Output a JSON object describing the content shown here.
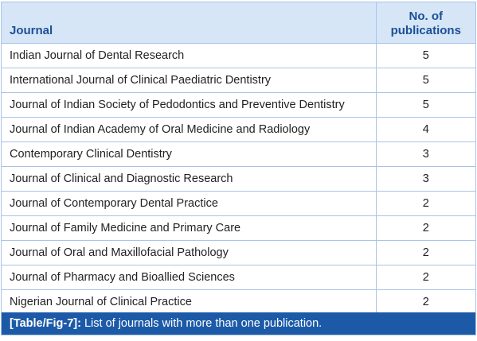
{
  "table": {
    "headers": {
      "journal": "Journal",
      "count_line1": "No. of",
      "count_line2": "publications"
    },
    "rows": [
      {
        "journal": "Indian Journal of Dental Research",
        "count": "5"
      },
      {
        "journal": "International Journal of Clinical Paediatric Dentistry",
        "count": "5"
      },
      {
        "journal": "Journal of Indian Society of Pedodontics and Preventive Dentistry",
        "count": "5"
      },
      {
        "journal": "Journal of Indian Academy of Oral Medicine and Radiology",
        "count": "4"
      },
      {
        "journal": "Contemporary Clinical Dentistry",
        "count": "3"
      },
      {
        "journal": "Journal of Clinical and Diagnostic Research",
        "count": "3"
      },
      {
        "journal": "Journal of Contemporary Dental Practice",
        "count": "2"
      },
      {
        "journal": "Journal of Family Medicine and Primary Care",
        "count": "2"
      },
      {
        "journal": "Journal of Oral and Maxillofacial Pathology",
        "count": "2"
      },
      {
        "journal": "Journal of Pharmacy and Bioallied Sciences",
        "count": "2"
      },
      {
        "journal": "Nigerian Journal of Clinical Practice",
        "count": "2"
      }
    ]
  },
  "caption": {
    "ref": "[Table/Fig-7]:",
    "text": " List of journals with more than one publication."
  },
  "colors": {
    "header_bg": "#d6e6f7",
    "header_text": "#1b4f95",
    "border": "#a9c4e6",
    "caption_bg": "#1c5aa8"
  }
}
